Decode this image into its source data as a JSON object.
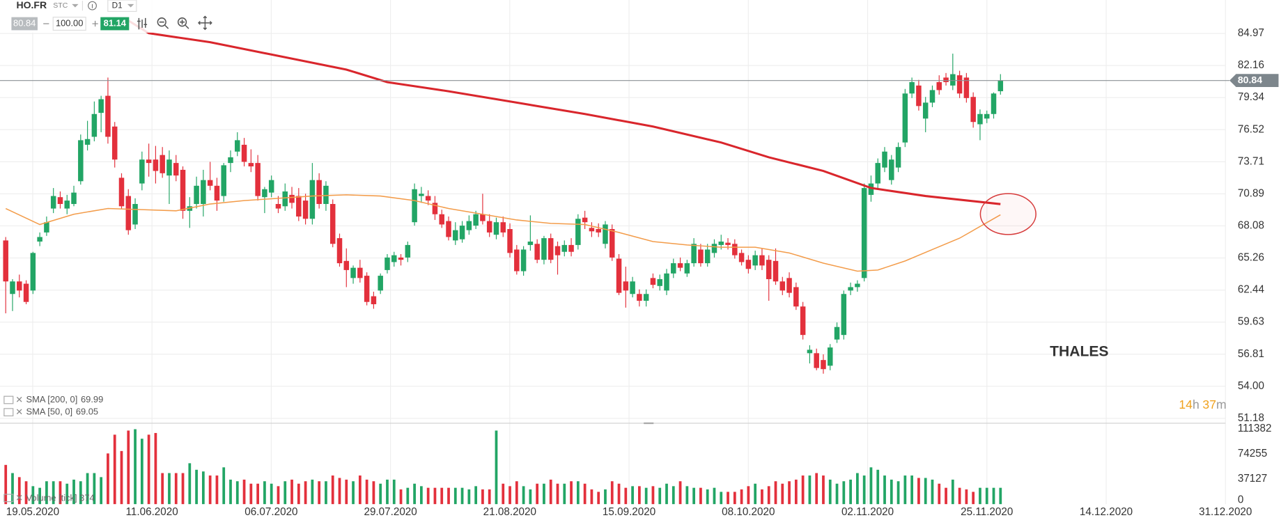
{
  "toolbar": {
    "symbol": "HO.FR",
    "exchange": "STC",
    "interval": "D1",
    "bid": "80.84",
    "lot": "100.00",
    "ask": "81.14"
  },
  "chart_data": {
    "type": "candlestick",
    "ylim": [
      50.75,
      87.91
    ],
    "yticks": [
      84.97,
      82.16,
      79.34,
      76.52,
      73.71,
      70.89,
      68.08,
      65.26,
      62.44,
      59.63,
      56.81,
      {
        "value": 54,
        "label": "54.00"
      },
      51.18
    ],
    "grid": true,
    "up_color": "#22a565",
    "down_color": "#e3303c",
    "last_price": 80.84,
    "xtick_labels": [
      "19.05.2020",
      "11.06.2020",
      "06.07.2020",
      "29.07.2020",
      "21.08.2020",
      "15.09.2020",
      "08.10.2020",
      "02.11.2020",
      "25.11.2020",
      "14.12.2020",
      "31.12.2020"
    ],
    "candles": [
      [
        66.8,
        67.1,
        60.4,
        63.2
      ],
      [
        62.1,
        63.4,
        60.6,
        63.2
      ],
      [
        63.2,
        63.8,
        61.8,
        62.4
      ],
      [
        63.0,
        63.3,
        61.2,
        61.4
      ],
      [
        62.4,
        65.8,
        62.1,
        65.7
      ],
      [
        66.7,
        67.5,
        66.3,
        67.1
      ],
      [
        67.5,
        68.9,
        67.2,
        68.4
      ],
      [
        69.6,
        71.4,
        69.2,
        70.7
      ],
      [
        70.6,
        71.1,
        69.6,
        70.0
      ],
      [
        69.6,
        70.8,
        69.1,
        70.3
      ],
      [
        70.0,
        71.6,
        69.8,
        71.0
      ],
      [
        72.0,
        76.1,
        71.7,
        75.6
      ],
      [
        75.2,
        77.3,
        74.7,
        75.7
      ],
      [
        75.9,
        79.0,
        75.5,
        77.9
      ],
      [
        78.0,
        79.5,
        76.3,
        79.2
      ],
      [
        79.5,
        81.1,
        75.3,
        75.9
      ],
      [
        76.8,
        77.2,
        73.2,
        73.9
      ],
      [
        72.3,
        72.7,
        69.6,
        69.8
      ],
      [
        70.7,
        71.3,
        67.3,
        67.7
      ],
      [
        68.2,
        70.5,
        67.8,
        70.0
      ],
      [
        71.8,
        74.6,
        71.2,
        73.9
      ],
      [
        73.9,
        75.3,
        72.4,
        73.6
      ],
      [
        73.9,
        75.1,
        71.8,
        72.9
      ],
      [
        74.3,
        75.0,
        72.3,
        72.7
      ],
      [
        72.5,
        74.7,
        70.0,
        73.9
      ],
      [
        73.6,
        74.3,
        72.0,
        72.5
      ],
      [
        73.0,
        73.3,
        68.7,
        69.4
      ],
      [
        69.4,
        70.6,
        67.9,
        69.8
      ],
      [
        70.0,
        72.4,
        69.6,
        71.6
      ],
      [
        70.0,
        73.0,
        68.9,
        72.1
      ],
      [
        72.1,
        73.7,
        71.2,
        71.6
      ],
      [
        71.6,
        72.3,
        69.4,
        70.3
      ],
      [
        70.7,
        73.6,
        70.2,
        73.4
      ],
      [
        73.6,
        74.7,
        72.8,
        74.1
      ],
      [
        74.6,
        76.3,
        74.2,
        75.6
      ],
      [
        75.2,
        75.8,
        73.3,
        73.7
      ],
      [
        73.6,
        74.8,
        72.8,
        73.3
      ],
      [
        73.6,
        74.3,
        70.3,
        70.7
      ],
      [
        70.6,
        71.5,
        69.2,
        71.3
      ],
      [
        71.0,
        72.5,
        70.6,
        72.1
      ],
      [
        70.0,
        70.7,
        69.2,
        69.6
      ],
      [
        69.8,
        71.8,
        69.4,
        71.1
      ],
      [
        70.8,
        71.5,
        69.6,
        70.1
      ],
      [
        70.7,
        71.4,
        68.5,
        68.9
      ],
      [
        70.3,
        70.9,
        68.2,
        68.7
      ],
      [
        68.7,
        73.6,
        68.2,
        72.1
      ],
      [
        72.1,
        72.7,
        69.6,
        70.0
      ],
      [
        70.0,
        72.0,
        69.4,
        71.6
      ],
      [
        70.0,
        70.4,
        66.2,
        66.5
      ],
      [
        67.0,
        67.4,
        64.5,
        64.8
      ],
      [
        65.0,
        66.1,
        62.7,
        64.2
      ],
      [
        63.5,
        64.6,
        63.0,
        64.4
      ],
      [
        64.4,
        65.1,
        63.1,
        63.5
      ],
      [
        63.7,
        64.0,
        61.1,
        61.4
      ],
      [
        61.9,
        62.3,
        60.8,
        61.2
      ],
      [
        62.4,
        63.9,
        62.1,
        63.7
      ],
      [
        64.2,
        65.6,
        63.9,
        65.3
      ],
      [
        64.9,
        65.8,
        64.5,
        65.5
      ],
      [
        65.3,
        65.6,
        64.6,
        65.1
      ],
      [
        65.3,
        66.7,
        64.9,
        66.4
      ],
      [
        68.4,
        71.8,
        68.1,
        71.3
      ],
      [
        70.7,
        71.5,
        70.1,
        70.9
      ],
      [
        70.7,
        71.2,
        69.9,
        70.3
      ],
      [
        70.1,
        70.7,
        68.6,
        69.1
      ],
      [
        69.1,
        69.5,
        67.9,
        68.2
      ],
      [
        68.5,
        68.9,
        66.8,
        67.1
      ],
      [
        66.8,
        68.4,
        66.4,
        67.7
      ],
      [
        66.9,
        68.5,
        66.6,
        68.1
      ],
      [
        67.7,
        69.0,
        67.3,
        68.5
      ],
      [
        68.1,
        69.4,
        67.8,
        69.1
      ],
      [
        69.1,
        70.9,
        68.2,
        68.5
      ],
      [
        68.5,
        69.1,
        67.1,
        67.5
      ],
      [
        67.3,
        68.8,
        66.9,
        68.4
      ],
      [
        68.4,
        68.9,
        67.1,
        67.5
      ],
      [
        67.8,
        68.3,
        65.3,
        65.7
      ],
      [
        66.0,
        66.4,
        63.8,
        64.1
      ],
      [
        64.1,
        66.3,
        63.7,
        66.0
      ],
      [
        66.4,
        69.0,
        65.9,
        66.7
      ],
      [
        66.5,
        66.9,
        64.8,
        65.1
      ],
      [
        65.1,
        67.2,
        64.7,
        67.0
      ],
      [
        67.0,
        67.4,
        64.8,
        65.1
      ],
      [
        66.3,
        66.7,
        63.8,
        65.5
      ],
      [
        65.8,
        66.8,
        65.4,
        66.4
      ],
      [
        66.4,
        67.0,
        65.4,
        65.8
      ],
      [
        66.4,
        69.1,
        66.0,
        68.7
      ],
      [
        68.8,
        69.4,
        67.8,
        68.4
      ],
      [
        67.9,
        68.4,
        67.1,
        67.6
      ],
      [
        67.8,
        68.3,
        67.1,
        67.5
      ],
      [
        66.5,
        68.5,
        66.1,
        68.2
      ],
      [
        67.8,
        68.2,
        65.0,
        65.3
      ],
      [
        65.2,
        65.6,
        62.0,
        62.2
      ],
      [
        63.2,
        64.5,
        60.9,
        62.4
      ],
      [
        62.1,
        63.6,
        61.8,
        63.2
      ],
      [
        62.1,
        62.5,
        61.0,
        61.5
      ],
      [
        61.5,
        62.5,
        61.0,
        62.1
      ],
      [
        63.5,
        63.9,
        62.6,
        62.9
      ],
      [
        62.8,
        63.8,
        62.4,
        63.4
      ],
      [
        62.4,
        64.3,
        62.0,
        63.9
      ],
      [
        63.9,
        65.2,
        63.5,
        64.8
      ],
      [
        64.8,
        65.3,
        64.1,
        64.4
      ],
      [
        63.9,
        65.1,
        63.6,
        64.8
      ],
      [
        64.8,
        67.0,
        64.5,
        66.5
      ],
      [
        66.0,
        66.5,
        64.5,
        64.8
      ],
      [
        64.8,
        66.5,
        64.5,
        66.0
      ],
      [
        65.7,
        66.9,
        65.3,
        66.5
      ],
      [
        66.4,
        67.3,
        66.0,
        66.7
      ],
      [
        66.6,
        67.0,
        66.0,
        66.4
      ],
      [
        66.5,
        66.9,
        65.2,
        65.5
      ],
      [
        65.7,
        66.0,
        64.6,
        64.9
      ],
      [
        65.1,
        65.5,
        63.9,
        64.3
      ],
      [
        64.6,
        65.9,
        64.2,
        65.5
      ],
      [
        65.5,
        66.1,
        64.2,
        64.6
      ],
      [
        65.1,
        65.5,
        61.5,
        63.4
      ],
      [
        65.0,
        66.1,
        62.9,
        63.2
      ],
      [
        63.2,
        63.6,
        62.0,
        62.4
      ],
      [
        63.5,
        64.0,
        61.8,
        62.2
      ],
      [
        62.7,
        63.1,
        60.7,
        61.0
      ],
      [
        61.0,
        61.4,
        58.1,
        58.5
      ],
      [
        56.9,
        57.6,
        56.0,
        57.2
      ],
      [
        56.9,
        57.3,
        55.4,
        55.6
      ],
      [
        56.3,
        56.8,
        55.1,
        55.5
      ],
      [
        55.8,
        57.7,
        55.4,
        57.4
      ],
      [
        58.1,
        59.6,
        57.8,
        59.2
      ],
      [
        58.5,
        62.4,
        58.1,
        62.1
      ],
      [
        62.4,
        63.1,
        62.0,
        62.7
      ],
      [
        62.7,
        63.3,
        62.3,
        63.0
      ],
      [
        63.5,
        71.8,
        63.2,
        71.4
      ],
      [
        70.8,
        72.5,
        70.2,
        71.8
      ],
      [
        71.8,
        74.0,
        71.4,
        73.6
      ],
      [
        73.2,
        75.0,
        72.8,
        74.6
      ],
      [
        72.1,
        74.3,
        71.7,
        73.9
      ],
      [
        73.2,
        75.4,
        72.8,
        75.0
      ],
      [
        75.4,
        80.1,
        75.0,
        79.7
      ],
      [
        79.7,
        81.1,
        79.3,
        80.7
      ],
      [
        80.4,
        80.9,
        78.2,
        78.6
      ],
      [
        77.5,
        79.4,
        76.3,
        78.9
      ],
      [
        78.9,
        80.4,
        78.5,
        80.0
      ],
      [
        80.7,
        81.3,
        79.6,
        80.0
      ],
      [
        81.1,
        81.5,
        80.4,
        80.7
      ],
      [
        80.4,
        83.2,
        80.0,
        81.4
      ],
      [
        81.3,
        81.7,
        79.3,
        79.7
      ],
      [
        81.1,
        81.5,
        78.9,
        79.3
      ],
      [
        79.4,
        79.8,
        76.7,
        77.2
      ],
      [
        77.0,
        78.3,
        75.6,
        77.9
      ],
      [
        77.5,
        78.2,
        77.1,
        77.9
      ],
      [
        77.9,
        79.8,
        77.5,
        79.7
      ],
      [
        79.9,
        81.4,
        79.6,
        80.84
      ]
    ],
    "sma": [
      {
        "name": "SMA [200, 0]",
        "color": "#d9262c",
        "x": [
          18,
          21,
          30,
          40,
          50,
          56,
          65,
          75,
          85,
          95,
          105,
          112,
          120,
          127,
          135,
          146
        ],
        "values": [
          86.1,
          85.0,
          84.2,
          83.0,
          81.8,
          80.7,
          79.9,
          78.9,
          77.9,
          76.8,
          75.4,
          74.1,
          72.9,
          71.4,
          70.7,
          69.99
        ]
      },
      {
        "name": "SMA [50, 0]",
        "color": "#f39c4a",
        "x": [
          0,
          5,
          10,
          15,
          20,
          25,
          30,
          35,
          40,
          45,
          50,
          55,
          60,
          65,
          70,
          75,
          80,
          85,
          90,
          95,
          100,
          105,
          110,
          115,
          120,
          125,
          128,
          132,
          136,
          140,
          146
        ],
        "values": [
          69.6,
          68.2,
          69.1,
          69.6,
          69.5,
          69.4,
          70.0,
          70.3,
          70.5,
          70.7,
          70.8,
          70.7,
          70.3,
          69.6,
          69.1,
          68.6,
          68.3,
          68.2,
          67.5,
          66.7,
          66.4,
          66.2,
          66.2,
          65.7,
          64.8,
          64.1,
          64.2,
          65.0,
          66.0,
          67.0,
          69.05
        ]
      }
    ],
    "volume": {
      "name": "Volume [tick] 374",
      "ylim": [
        0,
        111382
      ],
      "yticks": [
        111382,
        74255,
        37127,
        0
      ],
      "values": [
        58100,
        46000,
        40000,
        33900,
        26600,
        24200,
        33900,
        33900,
        33900,
        30300,
        36300,
        33900,
        46000,
        46000,
        40000,
        75100,
        102900,
        78700,
        109000,
        111000,
        96900,
        102900,
        105400,
        46000,
        46000,
        46000,
        46000,
        60600,
        50900,
        48400,
        42400,
        42400,
        54500,
        36300,
        33900,
        36300,
        30300,
        30300,
        33900,
        30300,
        26600,
        33900,
        36300,
        30300,
        33900,
        36300,
        33900,
        33900,
        42400,
        38800,
        36300,
        33900,
        42400,
        36300,
        33900,
        30300,
        36300,
        36300,
        21800,
        24200,
        30300,
        26600,
        24200,
        24200,
        24200,
        24200,
        24200,
        24200,
        21800,
        26600,
        21800,
        21800,
        109000,
        30300,
        26600,
        33900,
        26600,
        21800,
        30300,
        30300,
        36300,
        30300,
        30300,
        33900,
        33900,
        30300,
        21800,
        18200,
        21800,
        33900,
        30300,
        24200,
        26600,
        26600,
        24200,
        26600,
        24200,
        30300,
        26600,
        33900,
        26600,
        24200,
        24200,
        21800,
        24200,
        18200,
        18200,
        18200,
        21800,
        26600,
        30300,
        21800,
        26600,
        33900,
        30300,
        33900,
        36300,
        42400,
        42400,
        46000,
        42400,
        36300,
        30300,
        33900,
        36300,
        46000,
        42400,
        54500,
        50900,
        42400,
        36300,
        33900,
        42400,
        42400,
        38800,
        38800,
        36300,
        30300,
        24200,
        36300,
        24200,
        21800,
        18200,
        24200,
        24200,
        24200,
        24200
      ]
    },
    "annotation": "THALES",
    "timer": {
      "hours": "14",
      "hours_unit": "h",
      "minutes": "37",
      "minutes_unit": "m"
    }
  }
}
